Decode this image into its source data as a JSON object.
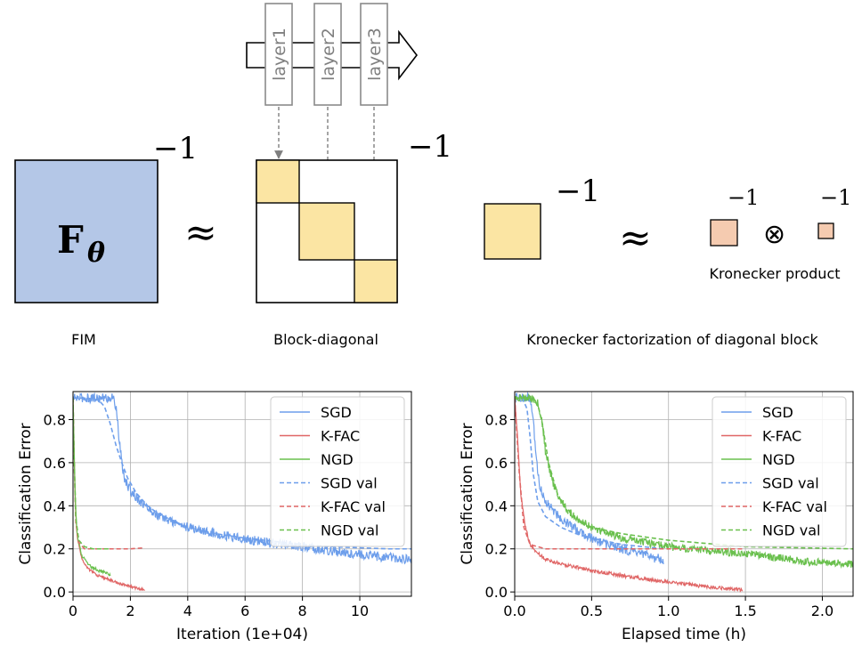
{
  "diagram": {
    "layers": [
      "layer1",
      "layer2",
      "layer3"
    ],
    "fim_symbol": "F",
    "fim_subscript": "θ",
    "inverse_exponent": "−1",
    "approx_symbol": "≈",
    "otimes_symbol": "⊗",
    "kronecker_product_label": "Kronecker product",
    "captions": {
      "fim": "FIM",
      "block_diagonal": "Block-diagonal",
      "kronecker_factorization": "Kronecker factorization of diagonal block"
    },
    "colors": {
      "fim_fill": "#b4c7e7",
      "block_fill": "#fbe5a3",
      "factor_fill": "#f5cbb0",
      "arrow_gray": "#7f7f7f"
    }
  },
  "chart_data": [
    {
      "type": "line",
      "xlabel": "Iteration (1e+04)",
      "ylabel": "Classification Error",
      "xlim": [
        0,
        11.8
      ],
      "ylim": [
        -0.02,
        0.93
      ],
      "xticks": [
        0,
        2,
        4,
        6,
        8,
        10
      ],
      "yticks": [
        0.0,
        0.2,
        0.4,
        0.6,
        0.8
      ],
      "xtick_labels": [
        "0",
        "2",
        "4",
        "6",
        "8",
        "10"
      ],
      "ytick_labels": [
        "0.0",
        "0.2",
        "0.4",
        "0.6",
        "0.8"
      ],
      "grid": true,
      "legend": "top-right",
      "series": [
        {
          "name": "SGD",
          "style": "solid",
          "color": "#6d9eeb",
          "noise": 0.022,
          "x": [
            0,
            0.2,
            0.5,
            1.0,
            1.4,
            1.5,
            1.6,
            1.7,
            1.8,
            2.0,
            2.5,
            3.0,
            4.0,
            5.0,
            6.0,
            7.0,
            8.0,
            9.0,
            10.0,
            11.0,
            11.8
          ],
          "y": [
            0.9,
            0.9,
            0.9,
            0.9,
            0.9,
            0.86,
            0.72,
            0.6,
            0.52,
            0.47,
            0.4,
            0.35,
            0.3,
            0.27,
            0.245,
            0.225,
            0.21,
            0.19,
            0.175,
            0.16,
            0.15
          ]
        },
        {
          "name": "K-FAC",
          "style": "solid",
          "color": "#e06666",
          "noise": 0.006,
          "x": [
            0,
            0.03,
            0.08,
            0.15,
            0.3,
            0.5,
            0.8,
            1.0,
            1.3,
            1.6,
            2.0,
            2.3,
            2.5
          ],
          "y": [
            0.9,
            0.7,
            0.4,
            0.25,
            0.16,
            0.11,
            0.08,
            0.07,
            0.055,
            0.04,
            0.025,
            0.015,
            0.01
          ]
        },
        {
          "name": "NGD",
          "style": "solid",
          "color": "#6ac04e",
          "noise": 0.008,
          "x": [
            0,
            0.03,
            0.08,
            0.15,
            0.3,
            0.5,
            0.7,
            0.9,
            1.1,
            1.3
          ],
          "y": [
            0.9,
            0.7,
            0.42,
            0.26,
            0.17,
            0.13,
            0.11,
            0.1,
            0.09,
            0.08
          ]
        },
        {
          "name": "SGD val",
          "style": "dashed",
          "color": "#6d9eeb",
          "noise": 0,
          "x": [
            0,
            0.5,
            0.9,
            1.1,
            1.3,
            1.5,
            1.7,
            1.9,
            2.2,
            2.6,
            3.0,
            4.0,
            5.0,
            6.0,
            7.0,
            8.0,
            9.0,
            10.0,
            11.0,
            11.8
          ],
          "y": [
            0.9,
            0.9,
            0.89,
            0.86,
            0.78,
            0.68,
            0.6,
            0.53,
            0.46,
            0.4,
            0.36,
            0.3,
            0.27,
            0.25,
            0.235,
            0.22,
            0.21,
            0.205,
            0.2,
            0.2
          ]
        },
        {
          "name": "K-FAC val",
          "style": "dashed",
          "color": "#e06666",
          "noise": 0,
          "x": [
            0,
            0.04,
            0.1,
            0.2,
            0.4,
            0.8,
            1.2,
            1.6,
            2.0,
            2.5
          ],
          "y": [
            0.9,
            0.6,
            0.32,
            0.23,
            0.2,
            0.2,
            0.2,
            0.2,
            0.2,
            0.205
          ]
        },
        {
          "name": "NGD val",
          "style": "dashed",
          "color": "#6ac04e",
          "noise": 0,
          "x": [
            0,
            0.04,
            0.1,
            0.2,
            0.4,
            0.7,
            1.0,
            1.3
          ],
          "y": [
            0.9,
            0.62,
            0.34,
            0.24,
            0.21,
            0.2,
            0.2,
            0.2
          ]
        }
      ]
    },
    {
      "type": "line",
      "xlabel": "Elapsed time (h)",
      "ylabel": "Classification Error",
      "xlim": [
        0,
        2.2
      ],
      "ylim": [
        -0.02,
        0.93
      ],
      "xticks": [
        0,
        0.5,
        1.0,
        1.5,
        2.0
      ],
      "yticks": [
        0.0,
        0.2,
        0.4,
        0.6,
        0.8
      ],
      "xtick_labels": [
        "0.0",
        "0.5",
        "1.0",
        "1.5",
        "2.0"
      ],
      "ytick_labels": [
        "0.0",
        "0.2",
        "0.4",
        "0.6",
        "0.8"
      ],
      "grid": true,
      "legend": "top-right",
      "series": [
        {
          "name": "SGD",
          "style": "solid",
          "color": "#6d9eeb",
          "noise": 0.022,
          "x": [
            0,
            0.05,
            0.1,
            0.12,
            0.14,
            0.16,
            0.2,
            0.3,
            0.4,
            0.5,
            0.6,
            0.7,
            0.8,
            0.9,
            0.97
          ],
          "y": [
            0.9,
            0.9,
            0.9,
            0.8,
            0.62,
            0.5,
            0.42,
            0.34,
            0.29,
            0.25,
            0.22,
            0.2,
            0.18,
            0.16,
            0.15
          ]
        },
        {
          "name": "K-FAC",
          "style": "solid",
          "color": "#e06666",
          "noise": 0.008,
          "x": [
            0,
            0.02,
            0.04,
            0.07,
            0.1,
            0.15,
            0.2,
            0.3,
            0.5,
            0.7,
            1.0,
            1.3,
            1.48
          ],
          "y": [
            0.9,
            0.7,
            0.45,
            0.3,
            0.22,
            0.18,
            0.15,
            0.13,
            0.1,
            0.075,
            0.045,
            0.02,
            0.01
          ]
        },
        {
          "name": "NGD",
          "style": "solid",
          "color": "#6ac04e",
          "noise": 0.018,
          "x": [
            0,
            0.1,
            0.15,
            0.18,
            0.2,
            0.25,
            0.3,
            0.4,
            0.5,
            0.7,
            1.0,
            1.3,
            1.6,
            1.9,
            2.2
          ],
          "y": [
            0.9,
            0.9,
            0.88,
            0.78,
            0.65,
            0.5,
            0.42,
            0.34,
            0.3,
            0.25,
            0.21,
            0.19,
            0.17,
            0.14,
            0.13
          ]
        },
        {
          "name": "SGD val",
          "style": "dashed",
          "color": "#6d9eeb",
          "noise": 0,
          "x": [
            0,
            0.05,
            0.08,
            0.1,
            0.12,
            0.15,
            0.2,
            0.3,
            0.4,
            0.5,
            0.7,
            0.97
          ],
          "y": [
            0.9,
            0.9,
            0.85,
            0.72,
            0.55,
            0.42,
            0.35,
            0.3,
            0.27,
            0.25,
            0.22,
            0.2
          ]
        },
        {
          "name": "K-FAC val",
          "style": "dashed",
          "color": "#e06666",
          "noise": 0,
          "x": [
            0,
            0.03,
            0.06,
            0.1,
            0.2,
            0.4,
            0.7,
            1.0,
            1.3,
            1.48
          ],
          "y": [
            0.9,
            0.55,
            0.3,
            0.22,
            0.2,
            0.2,
            0.2,
            0.2,
            0.2,
            0.2
          ]
        },
        {
          "name": "NGD val",
          "style": "dashed",
          "color": "#6ac04e",
          "noise": 0,
          "x": [
            0,
            0.1,
            0.15,
            0.18,
            0.22,
            0.28,
            0.35,
            0.5,
            0.7,
            1.0,
            1.5,
            2.2
          ],
          "y": [
            0.9,
            0.9,
            0.87,
            0.78,
            0.6,
            0.45,
            0.36,
            0.3,
            0.27,
            0.24,
            0.21,
            0.2
          ]
        }
      ]
    }
  ]
}
